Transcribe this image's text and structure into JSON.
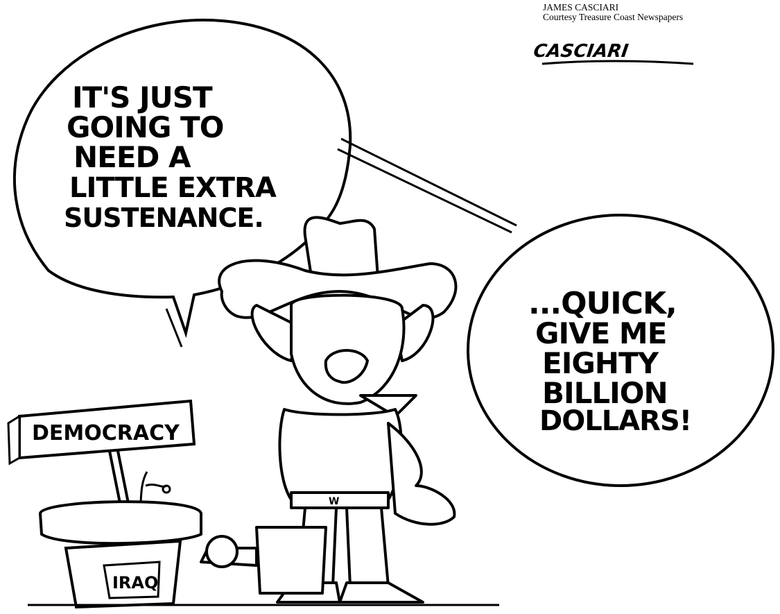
{
  "credit": {
    "artist": "JAMES CASCIARI",
    "source": "Courtesy Treasure Coast Newspapers"
  },
  "signature": "CASCIARI",
  "balloon_left": {
    "lines": [
      "IT'S JUST",
      "GOING TO",
      "NEED A",
      "LITTLE EXTRA",
      "SUSTENANCE."
    ]
  },
  "balloon_right": {
    "lines": [
      "...QUICK,",
      "GIVE ME",
      "EIGHTY",
      "BILLION",
      "DOLLARS!"
    ]
  },
  "sign": {
    "label": "DEMOCRACY"
  },
  "pot": {
    "label": "IRAQ"
  },
  "belt_buckle": {
    "label": "W"
  }
}
